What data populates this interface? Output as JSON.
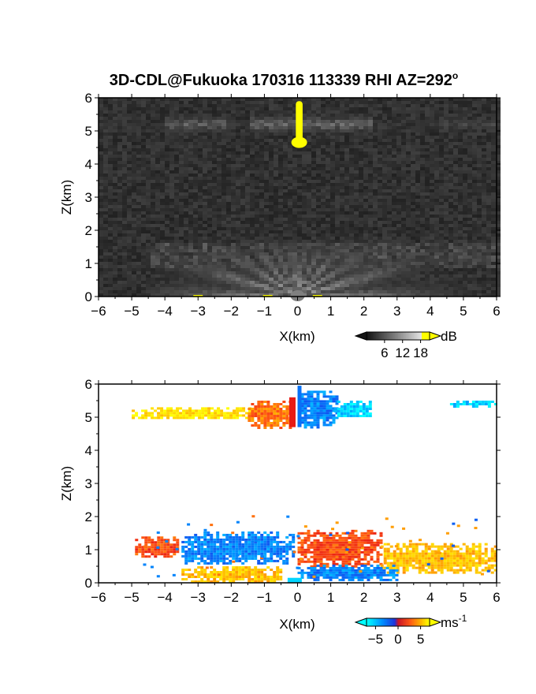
{
  "chart_data": [
    {
      "type": "heatmap",
      "title": "3D-CDL@Fukuoka 170316 113339 RHI AZ=292",
      "title_sup": "o",
      "xlabel": "X(km)",
      "ylabel": "Z(km)",
      "xlim": [
        -6,
        6
      ],
      "ylim": [
        0,
        6
      ],
      "xticks": [
        "-6",
        "-5",
        "-4",
        "-3",
        "-2",
        "-1",
        "0",
        "1",
        "2",
        "3",
        "4",
        "5",
        "6"
      ],
      "yticks": [
        "0",
        "1",
        "2",
        "3",
        "4",
        "5",
        "6"
      ],
      "colorbar": {
        "label": "dB",
        "ticks": [
          "6",
          "12",
          "18"
        ],
        "tick_values": [
          6,
          12,
          18
        ],
        "range": [
          0,
          21
        ],
        "colormap": "grayscale with yellow above 18"
      },
      "features": [
        {
          "name": "noise background",
          "x": [
            -6,
            6
          ],
          "z": [
            0,
            6
          ],
          "level_db": 3
        },
        {
          "name": "cloud layer",
          "x": [
            -6,
            6
          ],
          "z": [
            4.8,
            5.6
          ],
          "level_db": 8
        },
        {
          "name": "strong echo column",
          "x": [
            -0.1,
            0.2
          ],
          "z": [
            4.7,
            5.9
          ],
          "level_db": 20
        },
        {
          "name": "near-ground fan",
          "x": [
            -4.4,
            6
          ],
          "z": [
            0,
            1.7
          ],
          "level_db": 11
        }
      ]
    },
    {
      "type": "heatmap",
      "title": "",
      "xlabel": "X(km)",
      "ylabel": "Z(km)",
      "xlim": [
        -6,
        6
      ],
      "ylim": [
        0,
        6
      ],
      "xticks": [
        "-6",
        "-5",
        "-4",
        "-3",
        "-2",
        "-1",
        "0",
        "1",
        "2",
        "3",
        "4",
        "5",
        "6"
      ],
      "yticks": [
        "0",
        "1",
        "2",
        "3",
        "4",
        "5",
        "6"
      ],
      "colorbar": {
        "label": "ms",
        "label_sup": "-1",
        "ticks": [
          "−5",
          "0",
          "5"
        ],
        "tick_values": [
          -5,
          0,
          5
        ],
        "range": [
          -7,
          7
        ],
        "colormap": "cyan-blue-red-orange-yellow"
      },
      "features": [
        {
          "name": "upper layer west",
          "x": [
            -5.0,
            -1.4
          ],
          "z": [
            4.95,
            5.3
          ],
          "velocity": 6
        },
        {
          "name": "upper layer orange",
          "x": [
            -1.5,
            -0.1
          ],
          "z": [
            4.7,
            5.5
          ],
          "velocity": 3
        },
        {
          "name": "upper layer blue",
          "x": [
            0.0,
            1.2
          ],
          "z": [
            4.7,
            5.8
          ],
          "velocity": -4
        },
        {
          "name": "upper layer east",
          "x": [
            1.1,
            2.2
          ],
          "z": [
            5.0,
            5.5
          ],
          "velocity": -6
        },
        {
          "name": "upper layer far east",
          "x": [
            4.5,
            6
          ],
          "z": [
            5.35,
            5.5
          ],
          "velocity": -6
        },
        {
          "name": "low layer west",
          "x": [
            -4.9,
            -3.6
          ],
          "z": [
            0.8,
            1.4
          ],
          "velocity": 2
        },
        {
          "name": "low layer blue west",
          "x": [
            -3.5,
            -0.1
          ],
          "z": [
            0.6,
            1.55
          ],
          "velocity": -4
        },
        {
          "name": "low layer red center",
          "x": [
            0.0,
            2.5
          ],
          "z": [
            0.5,
            1.6
          ],
          "velocity": 2
        },
        {
          "name": "low layer east",
          "x": [
            2.5,
            6
          ],
          "z": [
            0.3,
            1.2
          ],
          "velocity": 5
        },
        {
          "name": "surface band west",
          "x": [
            -3.5,
            -0.5
          ],
          "z": [
            0,
            0.5
          ],
          "velocity": 5
        },
        {
          "name": "surface band east",
          "x": [
            0.0,
            3.0
          ],
          "z": [
            0.1,
            0.55
          ],
          "velocity": -4
        }
      ]
    }
  ]
}
